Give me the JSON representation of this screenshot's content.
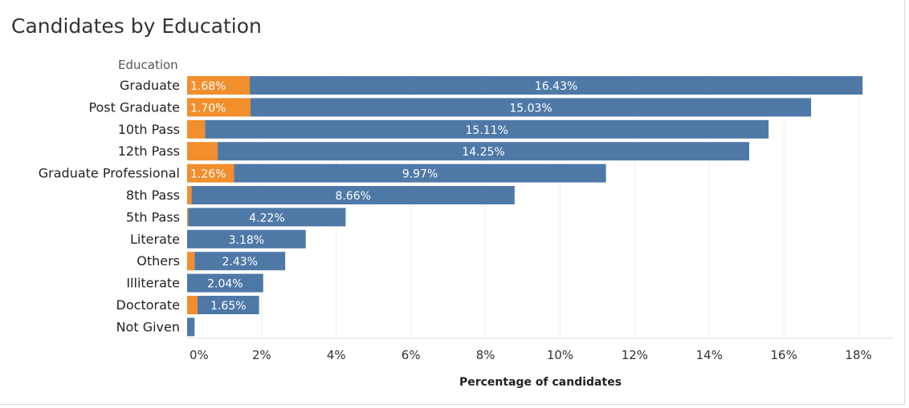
{
  "chart_data": {
    "type": "bar",
    "orientation": "horizontal",
    "stacked": true,
    "title": "Candidates by Education",
    "row_header": "Education",
    "xlabel": "Percentage of candidates",
    "xlim": [
      0,
      19
    ],
    "x_ticks": [
      0,
      2,
      4,
      6,
      8,
      10,
      12,
      14,
      16,
      18
    ],
    "x_tick_labels": [
      "0%",
      "2%",
      "4%",
      "6%",
      "8%",
      "10%",
      "12%",
      "14%",
      "16%",
      "18%"
    ],
    "categories": [
      "Graduate",
      "Post Graduate",
      "10th Pass",
      "12th Pass",
      "Graduate Professional",
      "8th Pass",
      "5th Pass",
      "Literate",
      "Others",
      "Illiterate",
      "Doctorate",
      "Not Given"
    ],
    "series": [
      {
        "name": "orange-segment",
        "color": "#f28e2b",
        "values": [
          1.68,
          1.7,
          0.48,
          0.82,
          1.26,
          0.12,
          0.03,
          0.0,
          0.2,
          0.0,
          0.28,
          0.0
        ],
        "labels": [
          "1.68%",
          "1.70%",
          "",
          "",
          "1.26%",
          "",
          "",
          "",
          "",
          "",
          "",
          ""
        ]
      },
      {
        "name": "blue-segment",
        "color": "#4e79a7",
        "values": [
          16.43,
          15.03,
          15.11,
          14.25,
          9.97,
          8.66,
          4.22,
          3.18,
          2.43,
          2.04,
          1.65,
          0.2
        ],
        "labels": [
          "16.43%",
          "15.03%",
          "15.11%",
          "14.25%",
          "9.97%",
          "8.66%",
          "4.22%",
          "3.18%",
          "2.43%",
          "2.04%",
          "1.65%",
          ""
        ]
      }
    ],
    "grid": true
  }
}
